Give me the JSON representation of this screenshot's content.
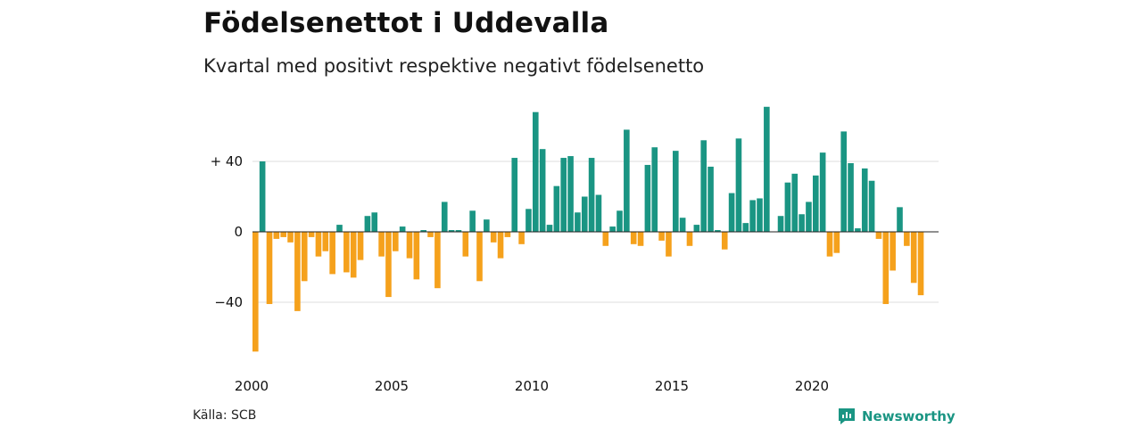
{
  "header": {
    "title": "Födelsenettot i Uddevalla",
    "subtitle": "Kvartal med positivt respektive negativt födelsenetto"
  },
  "footer": {
    "source": "Källa: SCB",
    "brand": "Newsworthy"
  },
  "colors": {
    "positive": "#1a9583",
    "negative": "#f5a11c",
    "grid": "#dddddd",
    "zero_line": "#222222"
  },
  "chart_data": {
    "type": "bar",
    "title": "Födelsenettot i Uddevalla",
    "subtitle": "Kvartal med positivt respektive negativt födelsenetto",
    "x_start_year": 2000,
    "periods_per_year": 4,
    "x_tick_labels": [
      "2000",
      "2005",
      "2010",
      "2015",
      "2020"
    ],
    "x_tick_years": [
      2000,
      2005,
      2010,
      2015,
      2020
    ],
    "y_ticks": [
      40,
      0,
      -40
    ],
    "y_tick_labels": [
      "+ 40",
      "0",
      "−40"
    ],
    "ylim": [
      -70,
      72
    ],
    "grid": true,
    "values": [
      -68,
      40,
      -41,
      -4,
      -3,
      -6,
      -45,
      -28,
      -3,
      -14,
      -11,
      -24,
      4,
      -23,
      -26,
      -16,
      9,
      11,
      -14,
      -37,
      -11,
      3,
      -15,
      -27,
      1,
      -3,
      -32,
      17,
      1,
      1,
      -14,
      12,
      -28,
      7,
      -6,
      -15,
      -3,
      42,
      -7,
      13,
      68,
      47,
      4,
      26,
      42,
      43,
      11,
      20,
      42,
      21,
      -8,
      3,
      12,
      58,
      -7,
      -8,
      38,
      48,
      -5,
      -14,
      46,
      8,
      -8,
      4,
      52,
      37,
      1,
      -10,
      22,
      53,
      5,
      18,
      19,
      71,
      0,
      9,
      28,
      33,
      10,
      17,
      32,
      45,
      -14,
      -12,
      57,
      39,
      2,
      36,
      29,
      -4,
      -41,
      -22,
      14,
      -8,
      -29,
      -36
    ]
  }
}
